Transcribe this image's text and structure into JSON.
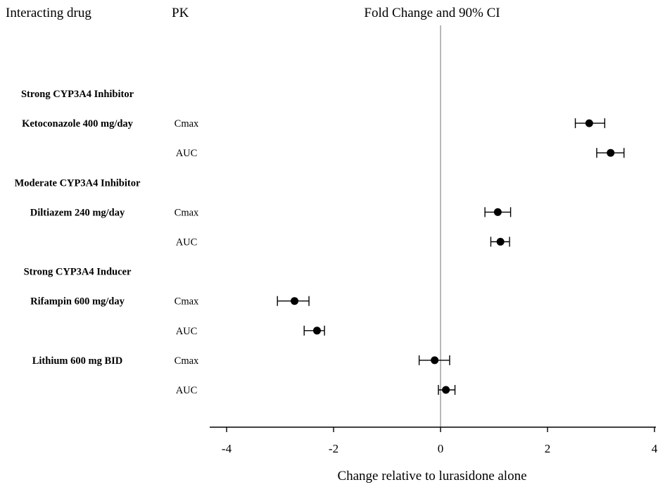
{
  "headers": {
    "drug": "Interacting drug",
    "pk": "PK",
    "effect": "Fold Change and 90% CI"
  },
  "chart_data": {
    "type": "forest",
    "xlabel": "Change relative to lurasidone alone",
    "xlim": [
      -4.3,
      4
    ],
    "xticks": [
      -4,
      -2,
      0,
      2,
      4
    ],
    "xtick_labels": [
      "-4",
      "-2",
      "0",
      "2",
      "4"
    ],
    "reference_line": 0,
    "rows": [
      {
        "kind": "group",
        "label": "Strong CYP3A4 Inhibitor"
      },
      {
        "kind": "data",
        "drug": "Ketoconazole 400 mg/day",
        "pk": "Cmax",
        "estimate": 2.78,
        "lower": 2.52,
        "upper": 3.07
      },
      {
        "kind": "data",
        "drug": "",
        "pk": "AUC",
        "estimate": 3.18,
        "lower": 2.92,
        "upper": 3.43
      },
      {
        "kind": "group",
        "label": "Moderate CYP3A4 Inhibitor"
      },
      {
        "kind": "data",
        "drug": "Diltiazem 240 mg/day",
        "pk": "Cmax",
        "estimate": 1.07,
        "lower": 0.83,
        "upper": 1.31
      },
      {
        "kind": "data",
        "drug": "",
        "pk": "AUC",
        "estimate": 1.12,
        "lower": 0.94,
        "upper": 1.29
      },
      {
        "kind": "group",
        "label": "Strong CYP3A4 Inducer"
      },
      {
        "kind": "data",
        "drug": "Rifampin 600 mg/day",
        "pk": "Cmax",
        "estimate": -2.73,
        "lower": -3.05,
        "upper": -2.46
      },
      {
        "kind": "data",
        "drug": "",
        "pk": "AUC",
        "estimate": -2.31,
        "lower": -2.55,
        "upper": -2.17
      },
      {
        "kind": "data",
        "drug": "Lithium 600 mg BID",
        "pk": "Cmax",
        "estimate": -0.11,
        "lower": -0.4,
        "upper": 0.17
      },
      {
        "kind": "data",
        "drug": "",
        "pk": "AUC",
        "estimate": 0.1,
        "lower": -0.04,
        "upper": 0.27
      }
    ]
  }
}
